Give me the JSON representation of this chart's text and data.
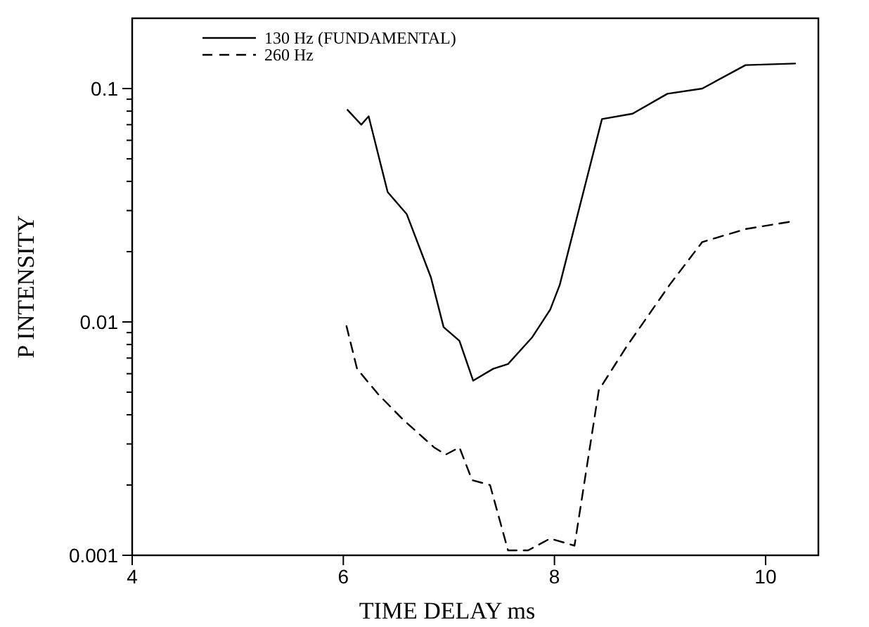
{
  "chart_data": {
    "type": "line",
    "xlabel": "TIME DELAY ms",
    "ylabel": "P INTENSITY",
    "log": "y",
    "legend": "top left",
    "grid": false,
    "marker": "none",
    "xlim": [
      4,
      10.5
    ],
    "xticks": [
      4,
      6,
      8,
      10
    ],
    "ylim": [
      0.001,
      0.2
    ],
    "yticks": [
      0.001,
      {
        "value": 0.002,
        "label": null
      },
      {
        "value": 0.003,
        "label": null
      },
      {
        "value": 0.004,
        "label": null
      },
      {
        "value": 0.005,
        "label": null
      },
      {
        "value": 0.006,
        "label": null
      },
      {
        "value": 0.007,
        "label": null
      },
      {
        "value": 0.008,
        "label": null
      },
      {
        "value": 0.009,
        "label": null
      },
      0.01,
      {
        "value": 0.02,
        "label": null
      },
      {
        "value": 0.03,
        "label": null
      },
      {
        "value": 0.04,
        "label": null
      },
      {
        "value": 0.05,
        "label": null
      },
      {
        "value": 0.06,
        "label": null
      },
      {
        "value": 0.07,
        "label": null
      },
      {
        "value": 0.08,
        "label": null
      },
      {
        "value": 0.09,
        "label": null
      },
      0.1
    ],
    "series": [
      {
        "name": "130 Hz (FUNDAMENTAL)",
        "color": "#000000",
        "line_style": "solid",
        "x": [
          6.04,
          6.17,
          6.24,
          6.42,
          6.6,
          6.83,
          6.95,
          7.1,
          7.23,
          7.42,
          7.56,
          7.79,
          7.96,
          8.05,
          8.45,
          8.74,
          9.07,
          9.4,
          9.81,
          10.28
        ],
        "values": [
          0.081,
          0.07,
          0.076,
          0.036,
          0.029,
          0.0155,
          0.0095,
          0.0083,
          0.0056,
          0.0063,
          0.0066,
          0.0086,
          0.0113,
          0.0144,
          0.074,
          0.078,
          0.095,
          0.1,
          0.126,
          0.128
        ]
      },
      {
        "name": "260 Hz",
        "color": "#000000",
        "line_style": "dashed",
        "x": [
          6.03,
          6.13,
          6.33,
          6.57,
          6.86,
          6.97,
          7.1,
          7.22,
          7.39,
          7.56,
          7.75,
          7.96,
          8.19,
          8.42,
          8.68,
          9.09,
          9.4,
          9.81,
          10.26
        ],
        "values": [
          0.0096,
          0.0063,
          0.0049,
          0.0038,
          0.0029,
          0.0027,
          0.0029,
          0.0021,
          0.002,
          0.00105,
          0.00105,
          0.00118,
          0.0011,
          0.0051,
          0.0078,
          0.0144,
          0.022,
          0.025,
          0.027
        ]
      }
    ]
  }
}
